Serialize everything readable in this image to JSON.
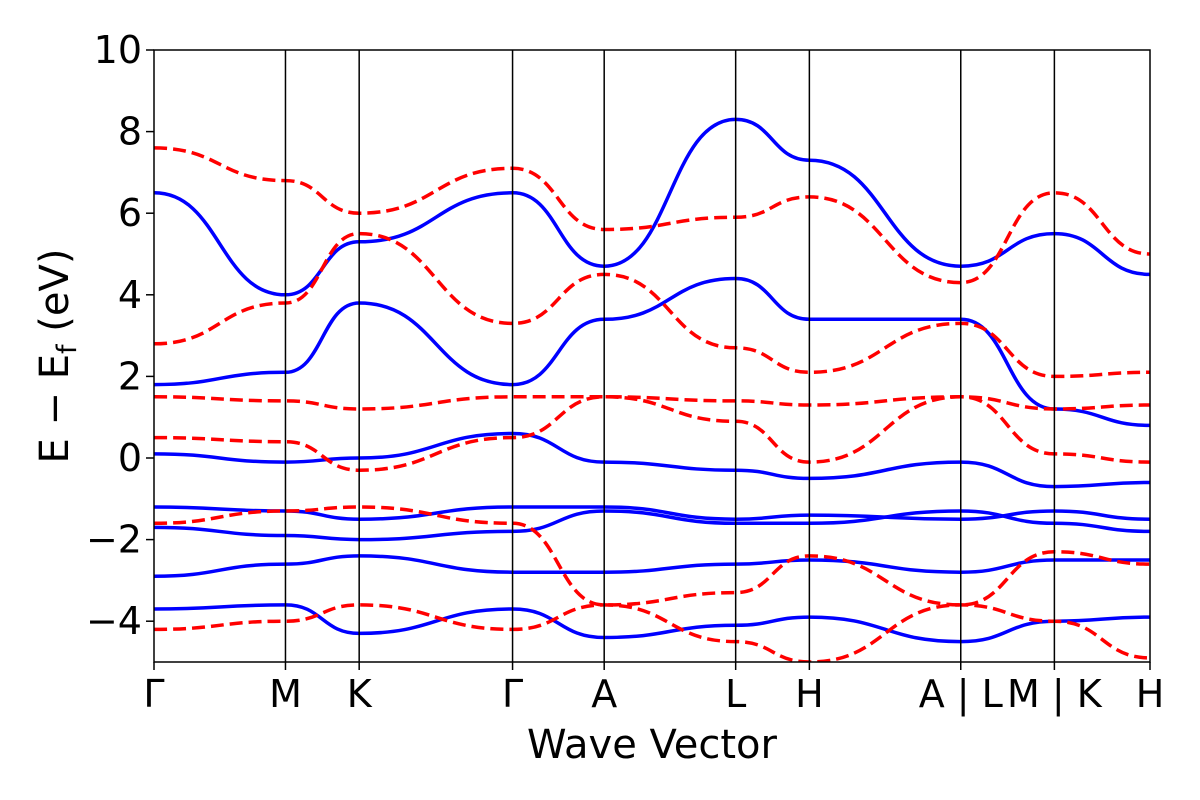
{
  "chart_data": {
    "type": "line",
    "xlabel": "Wave Vector",
    "ylabel_main": "E − E",
    "ylabel_sub": "f",
    "ylabel_unit": " (eV)",
    "ylim": [
      -5,
      10
    ],
    "y_ticks": [
      {
        "value": 10,
        "label": "10"
      },
      {
        "value": 8,
        "label": "8"
      },
      {
        "value": 6,
        "label": "6"
      },
      {
        "value": 4,
        "label": "4"
      },
      {
        "value": 2,
        "label": "2"
      },
      {
        "value": 0,
        "label": "0"
      },
      {
        "value": -2,
        "label": "−2"
      },
      {
        "value": -4,
        "label": "−4"
      }
    ],
    "path_ticks": [
      {
        "label": "Γ",
        "s": 0.0
      },
      {
        "label": "M",
        "s": 0.132
      },
      {
        "label": "K",
        "s": 0.206
      },
      {
        "label": "Γ",
        "s": 0.36
      },
      {
        "label": "A",
        "s": 0.452
      },
      {
        "label": "L",
        "s": 0.584
      },
      {
        "label": "H",
        "s": 0.658
      },
      {
        "label": "A | L",
        "s": 0.81
      },
      {
        "label": "M | K",
        "s": 0.904
      },
      {
        "label": "H",
        "s": 1.0
      }
    ],
    "band_colors": {
      "solid": "#0000ff",
      "dashed": "#ff0000"
    },
    "series": [
      {
        "style": "solid",
        "values": [
          -1.2,
          -1.3,
          -1.5,
          -1.2,
          -1.2,
          -1.5,
          -1.4,
          -1.5,
          -1.3,
          -1.5
        ]
      },
      {
        "style": "solid",
        "values": [
          -1.7,
          -1.9,
          -2.0,
          -1.8,
          -1.3,
          -1.6,
          -1.6,
          -1.3,
          -1.6,
          -1.8
        ]
      },
      {
        "style": "solid",
        "values": [
          -2.9,
          -2.6,
          -2.4,
          -2.8,
          -2.8,
          -2.6,
          -2.5,
          -2.8,
          -2.5,
          -2.5
        ]
      },
      {
        "style": "solid",
        "values": [
          -3.7,
          -3.6,
          -4.3,
          -3.7,
          -4.4,
          -4.1,
          -3.9,
          -4.5,
          -4.0,
          -3.9
        ]
      },
      {
        "style": "solid",
        "values": [
          0.1,
          -0.1,
          0.0,
          0.6,
          -0.1,
          -0.3,
          -0.5,
          -0.1,
          -0.7,
          -0.6
        ]
      },
      {
        "style": "solid",
        "values": [
          1.8,
          2.1,
          3.8,
          1.8,
          3.4,
          4.4,
          3.4,
          3.4,
          1.2,
          0.8
        ]
      },
      {
        "style": "solid",
        "values": [
          6.5,
          4.0,
          5.3,
          6.5,
          4.7,
          8.3,
          7.3,
          4.7,
          5.5,
          4.5
        ]
      },
      {
        "style": "dashed",
        "values": [
          -1.6,
          -1.3,
          -1.2,
          -1.6,
          -3.6,
          -3.3,
          -2.4,
          -3.6,
          -2.3,
          -2.6
        ]
      },
      {
        "style": "dashed",
        "values": [
          0.5,
          0.4,
          -0.3,
          0.5,
          1.5,
          0.9,
          -0.1,
          1.5,
          0.1,
          -0.1
        ]
      },
      {
        "style": "dashed",
        "values": [
          1.5,
          1.4,
          1.2,
          1.5,
          1.5,
          1.4,
          1.3,
          1.5,
          1.2,
          1.3
        ]
      },
      {
        "style": "dashed",
        "values": [
          2.8,
          3.8,
          5.5,
          3.3,
          4.5,
          2.7,
          2.1,
          3.3,
          2.0,
          2.1
        ]
      },
      {
        "style": "dashed",
        "values": [
          7.6,
          6.8,
          6.0,
          7.1,
          5.6,
          5.9,
          6.4,
          4.3,
          6.5,
          5.0
        ]
      },
      {
        "style": "dashed",
        "values": [
          -4.2,
          -4.0,
          -3.6,
          -4.2,
          -3.6,
          -4.5,
          -5.0,
          -3.6,
          -4.0,
          -4.9
        ]
      }
    ]
  }
}
